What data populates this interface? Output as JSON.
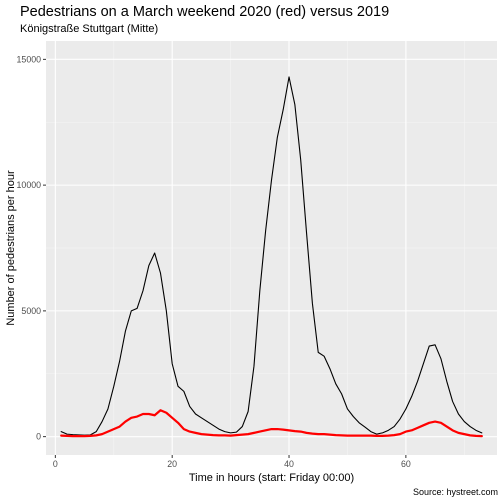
{
  "title": "Pedestrians on a March weekend 2020 (red) versus 2019",
  "subtitle": "Königstraße Stuttgart (Mitte)",
  "caption": "Source: hystreet.com",
  "chart_data": {
    "type": "line",
    "title": "Pedestrians on a March weekend 2020 (red) versus 2019",
    "subtitle": "Königstraße Stuttgart (Mitte)",
    "xlabel": "Time in hours (start: Friday 00:00)",
    "ylabel": "Number of pedestrians per hour",
    "xlim": [
      -1.6,
      75.6
    ],
    "ylim": [
      -730,
      15730
    ],
    "x_ticks": [
      0,
      20,
      40,
      60
    ],
    "y_ticks": [
      0,
      5000,
      10000,
      15000
    ],
    "x_tick_labels": [
      "0",
      "20",
      "40",
      "60"
    ],
    "y_tick_labels": [
      "0",
      "5000",
      "10000",
      "15000"
    ],
    "grid": true,
    "background": "#ebebeb",
    "series": [
      {
        "color": "#000000",
        "x": [
          1,
          2,
          3,
          4,
          5,
          6,
          7,
          8,
          9,
          10,
          11,
          12,
          13,
          14,
          15,
          16,
          17,
          18,
          19,
          20,
          21,
          22,
          23,
          24,
          25,
          26,
          27,
          28,
          29,
          30,
          31,
          32,
          33,
          34,
          35,
          36,
          37,
          38,
          39,
          40,
          41,
          42,
          43,
          44,
          45,
          46,
          47,
          48,
          49,
          50,
          51,
          52,
          53,
          54,
          55,
          56,
          57,
          58,
          59,
          60,
          61,
          62,
          63,
          64,
          65,
          66,
          67,
          68,
          69,
          70,
          71,
          72,
          73
        ],
        "y": [
          200,
          100,
          80,
          70,
          60,
          70,
          200,
          600,
          1100,
          2000,
          3000,
          4200,
          5000,
          5100,
          5800,
          6800,
          7300,
          6500,
          5000,
          2900,
          2000,
          1800,
          1200,
          900,
          750,
          600,
          450,
          300,
          200,
          150,
          180,
          400,
          1000,
          2800,
          5800,
          8200,
          10200,
          11900,
          13000,
          14300,
          13200,
          11000,
          8100,
          5300,
          3350,
          3200,
          2700,
          2100,
          1700,
          1100,
          800,
          550,
          380,
          200,
          100,
          150,
          250,
          400,
          700,
          1100,
          1600,
          2200,
          2900,
          3600,
          3650,
          3100,
          2200,
          1400,
          900,
          600,
          400,
          250,
          150
        ]
      },
      {
        "color": "#ff0000",
        "x": [
          1,
          2,
          3,
          4,
          5,
          6,
          7,
          8,
          9,
          10,
          11,
          12,
          13,
          14,
          15,
          16,
          17,
          18,
          19,
          20,
          21,
          22,
          23,
          24,
          25,
          26,
          27,
          28,
          29,
          30,
          31,
          32,
          33,
          34,
          35,
          36,
          37,
          38,
          39,
          40,
          41,
          42,
          43,
          44,
          45,
          46,
          47,
          48,
          49,
          50,
          51,
          52,
          53,
          54,
          55,
          56,
          57,
          58,
          59,
          60,
          61,
          62,
          63,
          64,
          65,
          66,
          67,
          68,
          69,
          70,
          71,
          72,
          73
        ],
        "y": [
          40,
          30,
          20,
          20,
          20,
          30,
          50,
          100,
          200,
          300,
          400,
          600,
          750,
          800,
          900,
          900,
          850,
          1050,
          950,
          750,
          550,
          300,
          200,
          150,
          100,
          80,
          60,
          50,
          50,
          40,
          60,
          80,
          100,
          150,
          200,
          250,
          300,
          300,
          280,
          250,
          220,
          200,
          150,
          120,
          100,
          100,
          80,
          60,
          50,
          40,
          40,
          40,
          40,
          40,
          30,
          30,
          40,
          60,
          100,
          200,
          250,
          350,
          450,
          550,
          600,
          550,
          400,
          250,
          150,
          100,
          50,
          30,
          20
        ]
      }
    ]
  }
}
